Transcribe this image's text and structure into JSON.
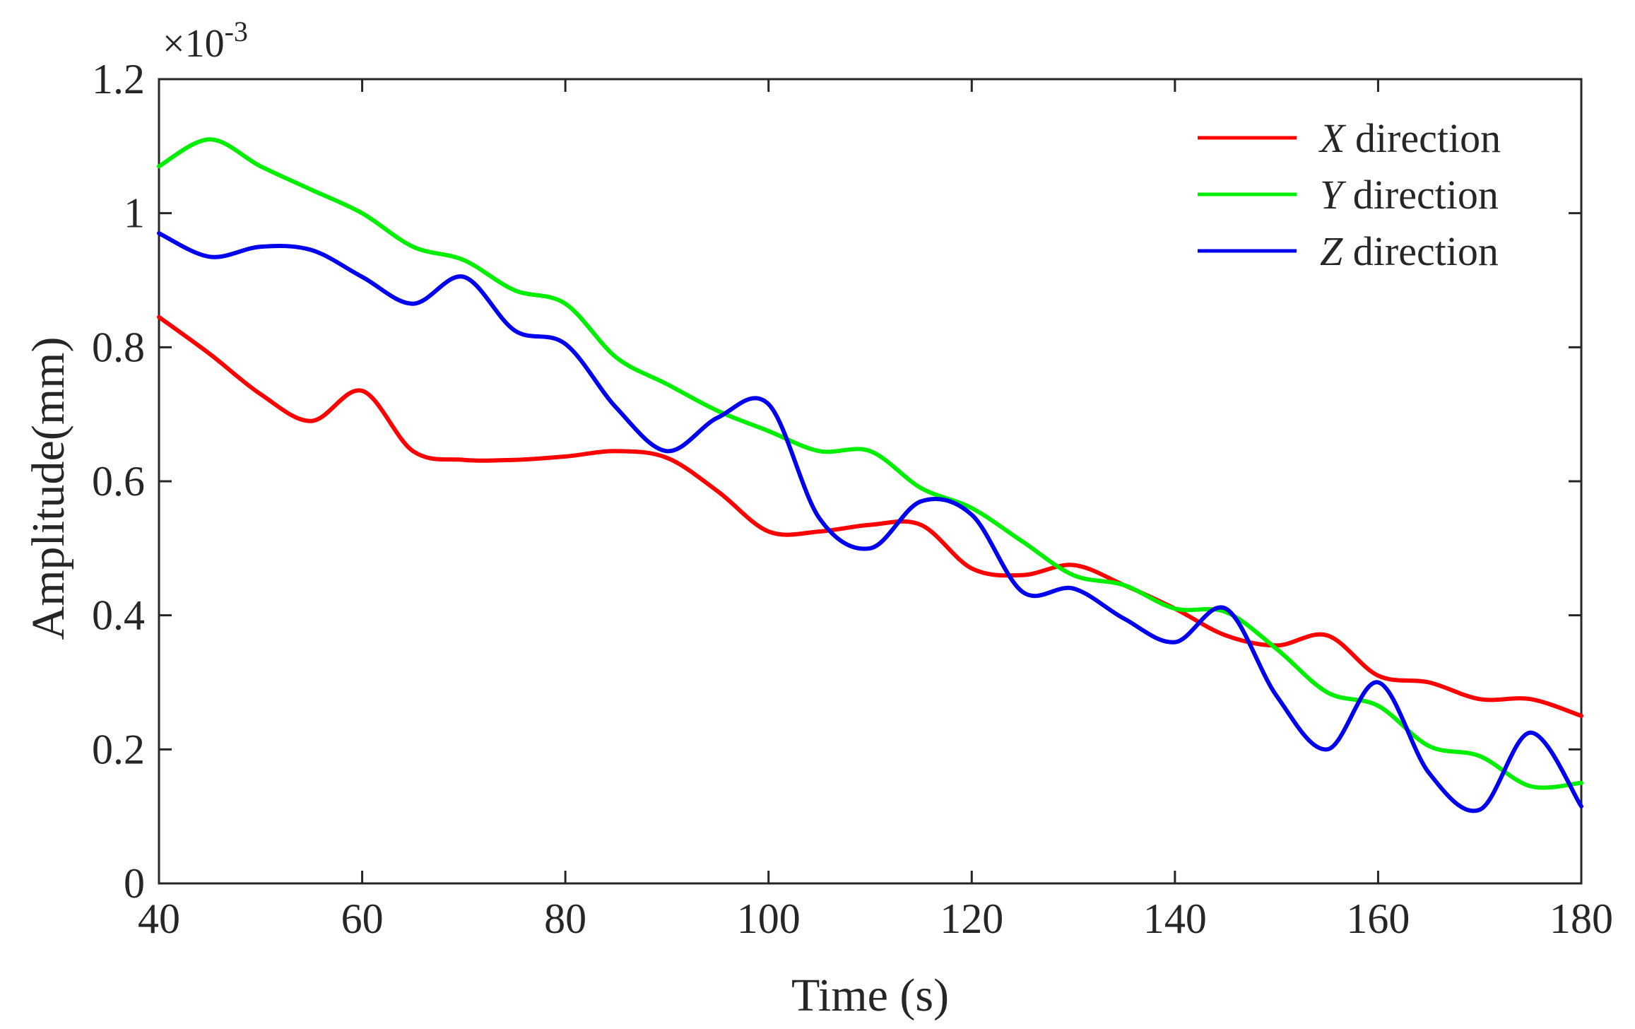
{
  "chart_data": {
    "type": "line",
    "title": "",
    "xlabel": "Time (s)",
    "ylabel": "Amplitude(mm)",
    "xlim": [
      40,
      180
    ],
    "ylim": [
      0,
      1.2
    ],
    "xticks": [
      "40",
      "60",
      "80",
      "100",
      "120",
      "140",
      "160",
      "180"
    ],
    "yticks": [
      "0",
      "0.2",
      "0.4",
      "0.6",
      "0.8",
      "1",
      "1.2"
    ],
    "y_exponent": {
      "base": "×10",
      "power": "-3"
    },
    "legend_position": "top-right",
    "grid": false,
    "series": [
      {
        "name": "X direction",
        "var": "X",
        "label": "direction",
        "color": "#ff0000",
        "x": [
          40,
          45,
          50,
          55,
          60,
          65,
          70,
          75,
          80,
          85,
          90,
          95,
          100,
          105,
          110,
          115,
          120,
          125,
          130,
          135,
          140,
          145,
          150,
          155,
          160,
          165,
          170,
          175,
          180
        ],
        "values": [
          0.845,
          0.79,
          0.73,
          0.69,
          0.735,
          0.645,
          0.632,
          0.632,
          0.637,
          0.645,
          0.635,
          0.585,
          0.525,
          0.525,
          0.535,
          0.535,
          0.47,
          0.46,
          0.475,
          0.445,
          0.41,
          0.37,
          0.355,
          0.37,
          0.31,
          0.3,
          0.275,
          0.275,
          0.25
        ]
      },
      {
        "name": "Y direction",
        "var": "Y",
        "label": "direction",
        "color": "#00ee00",
        "x": [
          40,
          45,
          50,
          55,
          60,
          65,
          70,
          75,
          80,
          85,
          90,
          95,
          100,
          105,
          110,
          115,
          120,
          125,
          130,
          135,
          140,
          145,
          150,
          155,
          160,
          165,
          170,
          175,
          180
        ],
        "values": [
          1.07,
          1.11,
          1.07,
          1.035,
          1.0,
          0.95,
          0.93,
          0.885,
          0.865,
          0.785,
          0.745,
          0.705,
          0.675,
          0.645,
          0.645,
          0.59,
          0.56,
          0.51,
          0.46,
          0.445,
          0.41,
          0.405,
          0.35,
          0.285,
          0.265,
          0.205,
          0.19,
          0.145,
          0.15
        ]
      },
      {
        "name": "Z direction",
        "var": "Z",
        "label": "direction",
        "color": "#0000ee",
        "x": [
          40,
          45,
          50,
          55,
          60,
          65,
          70,
          75,
          80,
          85,
          90,
          95,
          100,
          105,
          110,
          115,
          120,
          125,
          130,
          135,
          140,
          145,
          150,
          155,
          160,
          165,
          170,
          175,
          180
        ],
        "values": [
          0.97,
          0.935,
          0.95,
          0.945,
          0.905,
          0.865,
          0.905,
          0.825,
          0.805,
          0.71,
          0.645,
          0.695,
          0.715,
          0.545,
          0.5,
          0.57,
          0.55,
          0.435,
          0.44,
          0.395,
          0.36,
          0.41,
          0.28,
          0.2,
          0.3,
          0.165,
          0.11,
          0.225,
          0.115
        ]
      }
    ]
  }
}
